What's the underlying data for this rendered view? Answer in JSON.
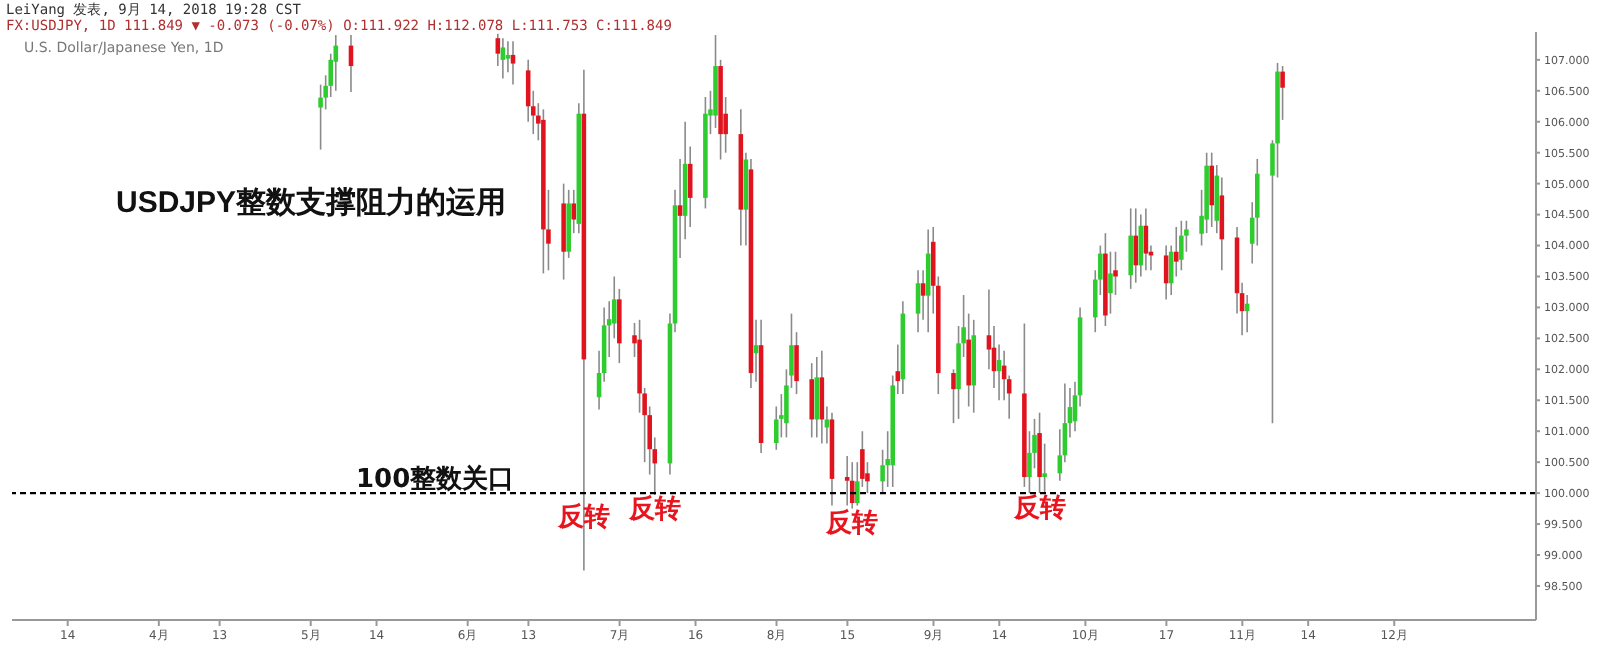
{
  "chart_data": {
    "type": "candlestick",
    "title": "USDJPY整数支撑阻力的运用",
    "subtitle": "U.S. Dollar/Japanese Yen, 1D",
    "annotations": [
      "LeiYang 发表, 9月 14, 2018 19:28 CST",
      "FX:USDJPY, 1D 111.849 ▼ -0.073 (-0.07%) O:111.922 H:112.078 L:111.753 C:111.849",
      {
        "text": "反转",
        "x": "--06-24",
        "y": 99.85
      },
      {
        "text": "反转",
        "x": "--07-08",
        "y": 99.97
      },
      {
        "text": "反转",
        "x": "--08-16",
        "y": 99.75
      },
      {
        "text": "反转",
        "x": "--09-22",
        "y": 100.0
      }
    ],
    "colors": [
      "#2ecc2e",
      "#2ecc2e",
      "#2ecc2e",
      "#2ecc2e",
      "#e0141e",
      "#e0141e",
      "#2ecc2e",
      "#2ecc2e",
      "#e0141e",
      "#e0141e",
      "#e0141e",
      "#e0141e",
      "#e0141e",
      "#e0141e",
      "#e0141e",
      "#2ecc2e",
      "#e0141e",
      "#2ecc2e",
      "#e0141e",
      "#2ecc2e",
      "#2ecc2e",
      "#2ecc2e",
      "#2ecc2e",
      "#e0141e",
      "#e0141e",
      "#e0141e",
      "#e0141e",
      "#e0141e",
      "#e0141e",
      "#2ecc2e",
      "#2ecc2e",
      "#e0141e",
      "#2ecc2e",
      "#e0141e",
      "#2ecc2e",
      "#2ecc2e",
      "#2ecc2e",
      "#e0141e",
      "#e0141e",
      "#e0141e",
      "#2ecc2e",
      "#e0141e",
      "#2ecc2e",
      "#e0141e",
      "#2ecc2e",
      "#2ecc2e",
      "#2ecc2e",
      "#2ecc2e",
      "#e0141e",
      "#e0141e",
      "#2ecc2e",
      "#e0141e",
      "#2ecc2e",
      "#e0141e",
      "#e0141e",
      "#e0141e",
      "#2ecc2e",
      "#e0141e",
      "#e0141e",
      "#2ecc2e",
      "#2ecc2e",
      "#2ecc2e",
      "#e0141e",
      "#2ecc2e",
      "#2ecc2e",
      "#e0141e",
      "#2ecc2e",
      "#e0141e",
      "#e0141e",
      "#e0141e",
      "#2ecc2e",
      "#2ecc2e",
      "#e0141e",
      "#2ecc2e",
      "#e0141e",
      "#e0141e",
      "#2ecc2e",
      "#e0141e",
      "#e0141e",
      "#e0141e",
      "#2ecc2e",
      "#2ecc2e",
      "#e0141e",
      "#2ecc2e",
      "#2ecc2e",
      "#2ecc2e",
      "#2ecc2e",
      "#2ecc2e",
      "#2ecc2e",
      "#2ecc2e",
      "#2ecc2e",
      "#e0141e",
      "#2ecc2e",
      "#e0141e",
      "#2ecc2e",
      "#e0141e",
      "#2ecc2e",
      "#e0141e",
      "#e0141e",
      "#e0141e",
      "#2ecc2e",
      "#e0141e",
      "#2ecc2e",
      "#2ecc2e",
      "#2ecc2e",
      "#2ecc2e",
      "#e0141e",
      "#2ecc2e",
      "#e0141e",
      "#e0141e",
      "#e0141e",
      "#2ecc2e",
      "#2ecc2e",
      "#2ecc2e",
      "#2ecc2e",
      "#2ecc2e",
      "#e0141e"
    ],
    "x": [
      "--05-03",
      "--05-04",
      "--05-05",
      "--05-06",
      "--05-09",
      "--06-07",
      "--06-08",
      "--06-09",
      "--06-10",
      "--06-13",
      "--06-14",
      "--06-15",
      "--06-16",
      "--06-17",
      "--06-20",
      "--06-21",
      "--06-22",
      "--06-23",
      "--06-24",
      "--06-27",
      "--06-28",
      "--06-29",
      "--06-30",
      "--07-01",
      "--07-04",
      "--07-05",
      "--07-06",
      "--07-07",
      "--07-08",
      "--07-11",
      "--07-12",
      "--07-13",
      "--07-14",
      "--07-15",
      "--07-18",
      "--07-19",
      "--07-20",
      "--07-21",
      "--07-22",
      "--07-25",
      "--07-26",
      "--07-27",
      "--07-28",
      "--07-29",
      "--08-01",
      "--08-02",
      "--08-03",
      "--08-04",
      "--08-05",
      "--08-08",
      "--08-09",
      "--08-10",
      "--08-11",
      "--08-12",
      "--08-15",
      "--08-16",
      "--08-17",
      "--08-18",
      "--08-19",
      "--08-22",
      "--08-23",
      "--08-24",
      "--08-25",
      "--08-26",
      "--08-29",
      "--08-30",
      "--08-31",
      "--09-01",
      "--09-02",
      "--09-05",
      "--09-06",
      "--09-07",
      "--09-08",
      "--09-09",
      "--09-12",
      "--09-13",
      "--09-14",
      "--09-15",
      "--09-16",
      "--09-19",
      "--09-20",
      "--09-21",
      "--09-22",
      "--09-23",
      "--09-26",
      "--09-27",
      "--09-28",
      "--09-29",
      "--09-30",
      "--10-03",
      "--10-04",
      "--10-05",
      "--10-06",
      "--10-07",
      "--10-10",
      "--10-11",
      "--10-12",
      "--10-13",
      "--10-14",
      "--10-17",
      "--10-18",
      "--10-19",
      "--10-20",
      "--10-21",
      "--10-24",
      "--10-25",
      "--10-26",
      "--10-27",
      "--10-28",
      "--10-31",
      "--11-01",
      "--11-02",
      "--11-03",
      "--11-04",
      "--11-07",
      "--11-08",
      "--11-09"
    ],
    "ohlc": [
      [
        106.23,
        106.6,
        105.55,
        106.39
      ],
      [
        106.39,
        106.75,
        106.2,
        106.58
      ],
      [
        106.58,
        107.1,
        106.4,
        107.0
      ],
      [
        106.97,
        107.4,
        106.5,
        107.23
      ],
      [
        107.23,
        107.4,
        106.48,
        106.9
      ],
      [
        107.35,
        107.42,
        106.9,
        107.1
      ],
      [
        107.0,
        107.35,
        106.7,
        107.2
      ],
      [
        107.02,
        107.3,
        106.8,
        107.08
      ],
      [
        107.08,
        107.3,
        106.6,
        106.94
      ],
      [
        106.83,
        107.0,
        106.0,
        106.25
      ],
      [
        106.25,
        106.5,
        105.8,
        106.1
      ],
      [
        106.1,
        106.3,
        105.7,
        105.97
      ],
      [
        106.03,
        106.2,
        103.55,
        104.26
      ],
      [
        104.26,
        104.9,
        103.6,
        104.03
      ],
      [
        104.68,
        105.0,
        103.45,
        103.9
      ],
      [
        103.9,
        104.9,
        103.8,
        104.68
      ],
      [
        104.68,
        104.9,
        104.2,
        104.42
      ],
      [
        104.35,
        106.3,
        104.2,
        106.13
      ],
      [
        106.13,
        106.84,
        98.75,
        102.16
      ],
      [
        101.55,
        102.3,
        101.35,
        101.94
      ],
      [
        101.94,
        103.0,
        101.8,
        102.71
      ],
      [
        102.71,
        103.1,
        102.2,
        102.81
      ],
      [
        102.74,
        103.5,
        102.5,
        103.13
      ],
      [
        103.13,
        103.3,
        102.1,
        102.42
      ],
      [
        102.55,
        102.75,
        102.2,
        102.42
      ],
      [
        102.48,
        102.8,
        101.3,
        101.61
      ],
      [
        101.61,
        101.7,
        100.5,
        101.26
      ],
      [
        101.26,
        101.4,
        100.3,
        100.71
      ],
      [
        100.71,
        100.9,
        99.97,
        100.48
      ],
      [
        100.48,
        102.9,
        100.3,
        102.74
      ],
      [
        102.74,
        104.9,
        102.6,
        104.65
      ],
      [
        104.65,
        105.4,
        103.8,
        104.48
      ],
      [
        104.48,
        106.0,
        104.1,
        105.32
      ],
      [
        105.32,
        105.6,
        104.3,
        104.77
      ],
      [
        104.77,
        106.4,
        104.6,
        106.13
      ],
      [
        106.1,
        106.5,
        105.8,
        106.2
      ],
      [
        106.1,
        107.4,
        105.9,
        106.9
      ],
      [
        106.9,
        107.0,
        105.39,
        105.8
      ],
      [
        106.13,
        106.4,
        105.5,
        105.8
      ],
      [
        105.8,
        106.2,
        104.0,
        104.58
      ],
      [
        104.58,
        105.5,
        104.0,
        105.39
      ],
      [
        105.23,
        105.4,
        101.7,
        101.94
      ],
      [
        102.26,
        102.8,
        101.8,
        102.39
      ],
      [
        102.39,
        102.8,
        100.65,
        100.81
      ],
      [
        100.81,
        101.4,
        100.7,
        101.19
      ],
      [
        101.2,
        101.6,
        100.9,
        101.26
      ],
      [
        101.13,
        102.0,
        100.9,
        101.74
      ],
      [
        101.9,
        102.9,
        101.7,
        102.39
      ],
      [
        102.39,
        102.6,
        101.6,
        101.81
      ],
      [
        101.84,
        102.1,
        100.9,
        101.19
      ],
      [
        101.19,
        102.2,
        100.9,
        101.87
      ],
      [
        101.87,
        102.3,
        100.8,
        101.19
      ],
      [
        101.06,
        101.4,
        100.8,
        101.19
      ],
      [
        101.19,
        101.3,
        99.8,
        100.23
      ],
      [
        100.26,
        100.6,
        99.8,
        100.2
      ],
      [
        100.2,
        100.5,
        99.75,
        99.84
      ],
      [
        99.84,
        100.5,
        99.8,
        100.19
      ],
      [
        100.71,
        101.0,
        100.1,
        100.23
      ],
      [
        100.32,
        100.5,
        100.0,
        100.19
      ],
      [
        100.19,
        100.7,
        100.0,
        100.45
      ],
      [
        100.45,
        101.0,
        100.1,
        100.55
      ],
      [
        100.45,
        101.9,
        100.1,
        101.74
      ],
      [
        101.97,
        102.4,
        101.6,
        101.81
      ],
      [
        101.84,
        103.1,
        101.6,
        102.9
      ],
      [
        102.9,
        103.6,
        102.6,
        103.39
      ],
      [
        103.39,
        103.6,
        102.8,
        103.19
      ],
      [
        103.19,
        104.26,
        102.6,
        103.87
      ],
      [
        104.06,
        104.3,
        102.9,
        103.35
      ],
      [
        103.35,
        103.5,
        101.6,
        101.94
      ],
      [
        101.94,
        102.0,
        101.13,
        101.68
      ],
      [
        101.68,
        102.7,
        101.2,
        102.42
      ],
      [
        102.42,
        103.2,
        102.2,
        102.68
      ],
      [
        102.48,
        102.9,
        101.4,
        101.74
      ],
      [
        101.74,
        102.8,
        101.3,
        102.55
      ],
      [
        102.55,
        103.29,
        102.0,
        102.32
      ],
      [
        102.35,
        102.7,
        101.7,
        101.97
      ],
      [
        101.97,
        102.4,
        101.5,
        102.15
      ],
      [
        102.06,
        102.3,
        101.5,
        101.84
      ],
      [
        101.84,
        101.9,
        101.2,
        101.61
      ],
      [
        101.61,
        102.74,
        100.1,
        100.26
      ],
      [
        100.26,
        101.0,
        100.0,
        100.65
      ],
      [
        100.65,
        101.2,
        100.4,
        100.94
      ],
      [
        100.97,
        101.3,
        100.0,
        100.26
      ],
      [
        100.26,
        100.8,
        100.01,
        100.32
      ],
      [
        100.32,
        101.03,
        100.2,
        100.61
      ],
      [
        100.61,
        101.77,
        100.5,
        101.13
      ],
      [
        101.13,
        101.7,
        100.9,
        101.39
      ],
      [
        101.16,
        101.8,
        101.0,
        101.58
      ],
      [
        101.58,
        103.0,
        101.4,
        102.84
      ],
      [
        102.84,
        103.6,
        102.6,
        103.45
      ],
      [
        103.45,
        104.0,
        103.2,
        103.87
      ],
      [
        103.87,
        104.2,
        102.7,
        102.87
      ],
      [
        103.23,
        103.9,
        102.9,
        103.55
      ],
      [
        103.6,
        103.9,
        103.2,
        103.5
      ],
      [
        103.52,
        104.6,
        103.3,
        104.16
      ],
      [
        104.16,
        104.6,
        103.4,
        103.68
      ],
      [
        103.68,
        104.5,
        103.5,
        104.32
      ],
      [
        104.32,
        104.6,
        103.6,
        103.87
      ],
      [
        103.9,
        104.0,
        103.6,
        103.84
      ],
      [
        103.84,
        104.0,
        103.13,
        103.39
      ],
      [
        103.39,
        104.0,
        103.2,
        103.9
      ],
      [
        103.9,
        104.3,
        103.5,
        103.74
      ],
      [
        103.77,
        104.4,
        103.6,
        104.16
      ],
      [
        104.16,
        104.4,
        103.9,
        104.26
      ],
      [
        104.19,
        104.9,
        104.0,
        104.48
      ],
      [
        104.42,
        105.5,
        104.2,
        105.29
      ],
      [
        105.29,
        105.5,
        104.3,
        104.65
      ],
      [
        104.4,
        105.3,
        104.2,
        105.13
      ],
      [
        104.81,
        105.1,
        103.6,
        104.1
      ],
      [
        104.13,
        104.3,
        102.9,
        103.23
      ],
      [
        103.23,
        103.4,
        102.55,
        102.94
      ],
      [
        102.94,
        103.2,
        102.6,
        103.06
      ],
      [
        104.03,
        104.7,
        103.71,
        104.45
      ],
      [
        104.45,
        105.4,
        104.0,
        105.16
      ],
      [
        105.13,
        105.7,
        101.13,
        105.65
      ],
      [
        105.65,
        106.95,
        105.1,
        106.81
      ],
      [
        106.81,
        106.9,
        106.03,
        106.55
      ]
    ],
    "xlim": [
      "--03-03",
      "--12-29"
    ],
    "xticks": [
      {
        "value": "--03-14",
        "label": "14"
      },
      {
        "value": "--04-01",
        "label": "4月"
      },
      {
        "value": "--04-13",
        "label": "13"
      },
      {
        "value": "--05-01",
        "label": "5月"
      },
      {
        "value": "--05-14",
        "label": "14"
      },
      {
        "value": "--06-01",
        "label": "6月"
      },
      {
        "value": "--06-13",
        "label": "13"
      },
      {
        "value": "--07-01",
        "label": "7月"
      },
      {
        "value": "--07-16",
        "label": "16"
      },
      {
        "value": "--08-01",
        "label": "8月"
      },
      {
        "value": "--08-15",
        "label": "15"
      },
      {
        "value": "--09-01",
        "label": "9月"
      },
      {
        "value": "--09-14",
        "label": "14"
      },
      {
        "value": "--10-01",
        "label": "10月"
      },
      {
        "value": "--10-17",
        "label": "17"
      },
      {
        "value": "--11-01",
        "label": "11月"
      },
      {
        "value": "--11-14",
        "label": "14"
      },
      {
        "value": "--12-01",
        "label": "12月"
      }
    ],
    "ylim": [
      97.95,
      107.45
    ],
    "yticks": [
      {
        "value": 98.5,
        "label": "98.500"
      },
      {
        "value": 99,
        "label": "99.000"
      },
      {
        "value": 99.5,
        "label": "99.500"
      },
      {
        "value": 100,
        "label": "100.000"
      },
      {
        "value": 100.5,
        "label": "100.500"
      },
      {
        "value": 101,
        "label": "101.000"
      },
      {
        "value": 101.5,
        "label": "101.500"
      },
      {
        "value": 102,
        "label": "102.000"
      },
      {
        "value": 102.5,
        "label": "102.500"
      },
      {
        "value": 103,
        "label": "103.000"
      },
      {
        "value": 103.5,
        "label": "103.500"
      },
      {
        "value": 104,
        "label": "104.000"
      },
      {
        "value": 104.5,
        "label": "104.500"
      },
      {
        "value": 105,
        "label": "105.000"
      },
      {
        "value": 105.5,
        "label": "105.500"
      },
      {
        "value": 106,
        "label": "106.000"
      },
      {
        "value": 106.5,
        "label": "106.500"
      },
      {
        "value": 107,
        "label": "107.000"
      }
    ],
    "ref_lines": [
      {
        "axis": "y",
        "value": 100,
        "label": "100整数关口",
        "color": "#000000",
        "line_style": "dashed"
      }
    ]
  }
}
